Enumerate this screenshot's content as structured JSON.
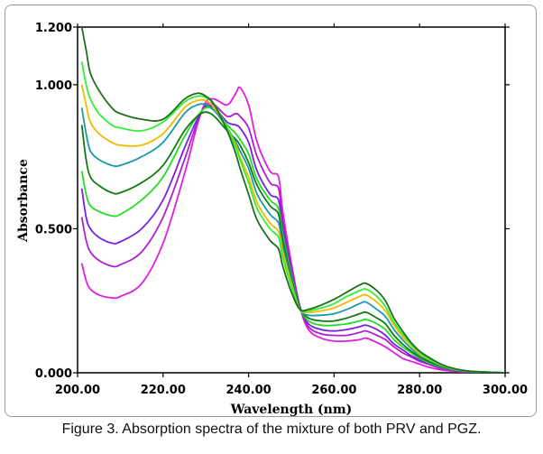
{
  "caption": "Figure 3. Absorption spectra of the mixture of both PRV and PGZ.",
  "chart_data": {
    "type": "line",
    "title": "",
    "xlabel": "Wavelength (nm)",
    "ylabel": "Absorbance",
    "xlim": [
      200,
      300
    ],
    "ylim": [
      0,
      1.2
    ],
    "x_ticks": [
      {
        "v": 200,
        "label": "200.00"
      },
      {
        "v": 220,
        "label": "220.00"
      },
      {
        "v": 240,
        "label": "240.00"
      },
      {
        "v": 260,
        "label": "260.00"
      },
      {
        "v": 280,
        "label": "280.00"
      },
      {
        "v": 300,
        "label": "300.00"
      }
    ],
    "y_ticks": [
      {
        "v": 0,
        "label": "0.000"
      },
      {
        "v": 0.5,
        "label": "0.500"
      },
      {
        "v": 1.0,
        "label": "1.000"
      },
      {
        "v": 1.2,
        "label": "1.200"
      }
    ],
    "x": [
      201,
      202,
      203,
      205,
      208,
      210,
      215,
      220,
      225,
      228,
      230,
      232,
      235,
      237,
      238,
      240,
      242,
      245,
      247,
      248,
      250,
      252,
      254,
      257,
      260,
      263,
      266,
      267.5,
      270,
      272,
      274,
      276,
      278,
      280,
      282,
      285,
      288,
      292,
      300
    ],
    "series": [
      {
        "color": "#e020e0",
        "values": [
          0.38,
          0.32,
          0.29,
          0.27,
          0.26,
          0.265,
          0.31,
          0.45,
          0.69,
          0.86,
          0.94,
          0.95,
          0.93,
          0.97,
          0.99,
          0.93,
          0.8,
          0.7,
          0.68,
          0.56,
          0.38,
          0.23,
          0.15,
          0.12,
          0.11,
          0.11,
          0.115,
          0.12,
          0.105,
          0.09,
          0.07,
          0.05,
          0.04,
          0.03,
          0.02,
          0.01,
          0.005,
          0.002,
          0.0
        ]
      },
      {
        "color": "#b020d0",
        "values": [
          0.54,
          0.46,
          0.42,
          0.39,
          0.37,
          0.375,
          0.42,
          0.54,
          0.74,
          0.87,
          0.93,
          0.93,
          0.89,
          0.9,
          0.89,
          0.85,
          0.75,
          0.66,
          0.64,
          0.53,
          0.37,
          0.23,
          0.16,
          0.135,
          0.13,
          0.13,
          0.14,
          0.145,
          0.13,
          0.115,
          0.09,
          0.07,
          0.055,
          0.04,
          0.03,
          0.015,
          0.008,
          0.003,
          0.0
        ]
      },
      {
        "color": "#7a20e0",
        "values": [
          0.64,
          0.54,
          0.5,
          0.47,
          0.45,
          0.455,
          0.5,
          0.6,
          0.78,
          0.88,
          0.925,
          0.92,
          0.87,
          0.86,
          0.85,
          0.8,
          0.7,
          0.62,
          0.6,
          0.5,
          0.35,
          0.23,
          0.17,
          0.15,
          0.145,
          0.15,
          0.16,
          0.165,
          0.15,
          0.13,
          0.1,
          0.08,
          0.06,
          0.045,
          0.032,
          0.018,
          0.009,
          0.003,
          0.0
        ]
      },
      {
        "color": "#22dd22",
        "values": [
          0.7,
          0.62,
          0.58,
          0.56,
          0.545,
          0.55,
          0.6,
          0.68,
          0.82,
          0.89,
          0.92,
          0.91,
          0.86,
          0.83,
          0.81,
          0.76,
          0.67,
          0.6,
          0.57,
          0.48,
          0.34,
          0.225,
          0.18,
          0.165,
          0.165,
          0.17,
          0.18,
          0.185,
          0.17,
          0.15,
          0.115,
          0.09,
          0.07,
          0.05,
          0.036,
          0.02,
          0.01,
          0.004,
          0.0
        ]
      },
      {
        "color": "#117a11",
        "values": [
          0.86,
          0.74,
          0.68,
          0.65,
          0.625,
          0.625,
          0.66,
          0.72,
          0.84,
          0.89,
          0.905,
          0.89,
          0.84,
          0.81,
          0.79,
          0.73,
          0.65,
          0.58,
          0.55,
          0.46,
          0.33,
          0.225,
          0.19,
          0.18,
          0.18,
          0.19,
          0.205,
          0.21,
          0.19,
          0.17,
          0.13,
          0.1,
          0.075,
          0.055,
          0.04,
          0.022,
          0.011,
          0.004,
          0.0
        ]
      },
      {
        "color": "#1a9aaa",
        "values": [
          0.92,
          0.83,
          0.77,
          0.74,
          0.72,
          0.72,
          0.75,
          0.8,
          0.9,
          0.93,
          0.93,
          0.91,
          0.85,
          0.8,
          0.77,
          0.71,
          0.62,
          0.55,
          0.52,
          0.44,
          0.32,
          0.22,
          0.2,
          0.2,
          0.205,
          0.22,
          0.24,
          0.245,
          0.22,
          0.195,
          0.15,
          0.115,
          0.085,
          0.06,
          0.045,
          0.025,
          0.012,
          0.004,
          0.0
        ]
      },
      {
        "color": "#f5b800",
        "values": [
          1.0,
          0.93,
          0.87,
          0.83,
          0.8,
          0.79,
          0.79,
          0.83,
          0.92,
          0.945,
          0.945,
          0.92,
          0.85,
          0.79,
          0.75,
          0.68,
          0.59,
          0.52,
          0.49,
          0.42,
          0.31,
          0.22,
          0.21,
          0.215,
          0.225,
          0.245,
          0.265,
          0.27,
          0.245,
          0.215,
          0.165,
          0.125,
          0.095,
          0.065,
          0.048,
          0.027,
          0.013,
          0.005,
          0.0
        ]
      },
      {
        "color": "#33ee33",
        "values": [
          1.08,
          1.0,
          0.95,
          0.9,
          0.86,
          0.85,
          0.84,
          0.87,
          0.94,
          0.96,
          0.955,
          0.93,
          0.85,
          0.78,
          0.74,
          0.66,
          0.57,
          0.5,
          0.47,
          0.4,
          0.3,
          0.22,
          0.215,
          0.225,
          0.24,
          0.265,
          0.285,
          0.29,
          0.265,
          0.23,
          0.175,
          0.135,
          0.1,
          0.07,
          0.05,
          0.028,
          0.014,
          0.005,
          0.0
        ]
      },
      {
        "color": "#1d6e1d",
        "values": [
          1.2,
          1.12,
          1.04,
          0.98,
          0.92,
          0.9,
          0.88,
          0.88,
          0.95,
          0.97,
          0.96,
          0.93,
          0.84,
          0.76,
          0.71,
          0.62,
          0.53,
          0.46,
          0.43,
          0.37,
          0.28,
          0.22,
          0.22,
          0.235,
          0.255,
          0.28,
          0.305,
          0.31,
          0.285,
          0.25,
          0.19,
          0.145,
          0.105,
          0.075,
          0.055,
          0.03,
          0.015,
          0.005,
          0.0
        ]
      }
    ]
  }
}
